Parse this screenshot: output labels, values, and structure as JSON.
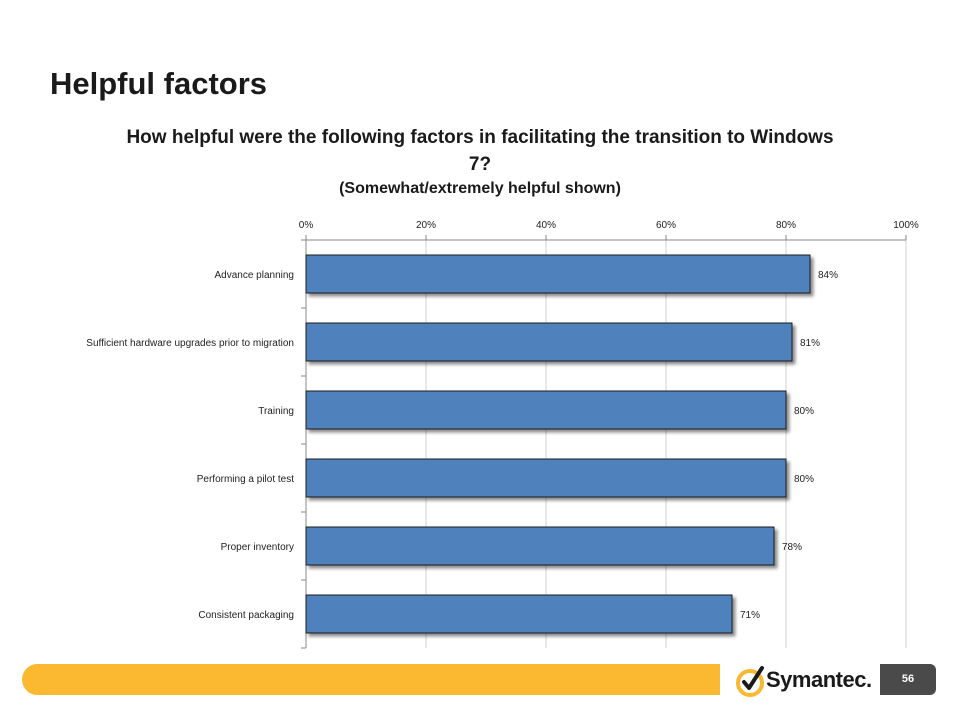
{
  "slide": {
    "title": "Helpful factors",
    "brand": "Symantec.",
    "page_number": "56",
    "colors": {
      "footer_bar": "#fbb831",
      "bar_fill": "#4f81bd",
      "page_box": "#4a4a4a"
    }
  },
  "chart_data": {
    "type": "bar",
    "orientation": "horizontal",
    "title": "How helpful were the following factors in facilitating the transition to Windows 7?",
    "subtitle": "(Somewhat/extremely helpful shown)",
    "categories": [
      "Advance planning",
      "Sufficient hardware upgrades prior to migration",
      "Training",
      "Performing a pilot test",
      "Proper inventory",
      "Consistent packaging"
    ],
    "values": [
      84,
      81,
      80,
      80,
      78,
      71
    ],
    "data_labels": [
      "84%",
      "81%",
      "80%",
      "80%",
      "78%",
      "71%"
    ],
    "xlim": [
      0,
      100
    ],
    "x_ticks": [
      "0%",
      "20%",
      "40%",
      "60%",
      "80%",
      "100%"
    ],
    "x_axis_position": "top",
    "grid": true,
    "legend": "none"
  }
}
